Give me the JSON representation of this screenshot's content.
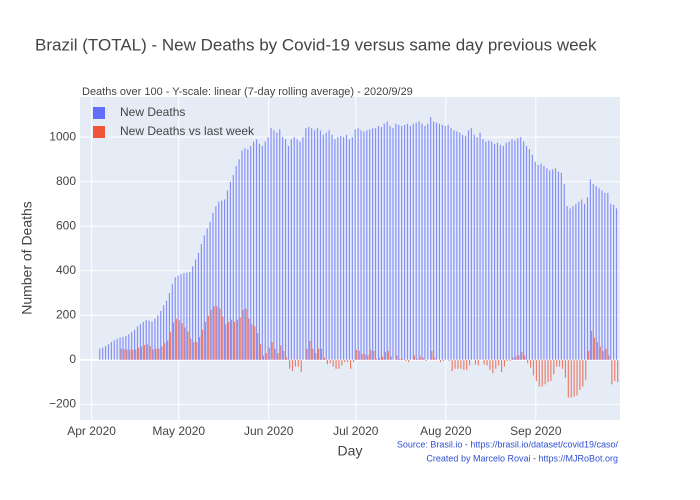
{
  "chart_data": {
    "type": "bar",
    "title": "Brazil (TOTAL) - New Deaths by Covid-19 versus same day previous week",
    "subtitle": "Deaths over 100 - Y-scale: linear (7-day rolling average) - 2020/9/29",
    "x_label": "Day",
    "y_label": "Number of Deaths",
    "annotations": [
      "Source: Brasil.io - https://brasil.io/dataset/covid19/caso/",
      "Created by Marcelo Rovai - https://MJRoBot.org"
    ],
    "legend": "top-left",
    "grid": true,
    "xlim": [
      "2020-03-28",
      "2020-09-30"
    ],
    "xticks": [
      {
        "value": "2020-04-01",
        "label": "Apr 2020"
      },
      {
        "value": "2020-05-01",
        "label": "May 2020"
      },
      {
        "value": "2020-06-01",
        "label": "Jun 2020"
      },
      {
        "value": "2020-07-01",
        "label": "Jul 2020"
      },
      {
        "value": "2020-08-01",
        "label": "Aug 2020"
      },
      {
        "value": "2020-09-01",
        "label": "Sep 2020"
      }
    ],
    "ylim": [
      -270,
      1180
    ],
    "yticks": [
      {
        "value": -200,
        "label": "−200"
      },
      0,
      200,
      400,
      600,
      800,
      1000
    ],
    "x": [
      "2020-04-04",
      "2020-04-05",
      "2020-04-06",
      "2020-04-07",
      "2020-04-08",
      "2020-04-09",
      "2020-04-10",
      "2020-04-11",
      "2020-04-12",
      "2020-04-13",
      "2020-04-14",
      "2020-04-15",
      "2020-04-16",
      "2020-04-17",
      "2020-04-18",
      "2020-04-19",
      "2020-04-20",
      "2020-04-21",
      "2020-04-22",
      "2020-04-23",
      "2020-04-24",
      "2020-04-25",
      "2020-04-26",
      "2020-04-27",
      "2020-04-28",
      "2020-04-29",
      "2020-04-30",
      "2020-05-01",
      "2020-05-02",
      "2020-05-03",
      "2020-05-04",
      "2020-05-05",
      "2020-05-06",
      "2020-05-07",
      "2020-05-08",
      "2020-05-09",
      "2020-05-10",
      "2020-05-11",
      "2020-05-12",
      "2020-05-13",
      "2020-05-14",
      "2020-05-15",
      "2020-05-16",
      "2020-05-17",
      "2020-05-18",
      "2020-05-19",
      "2020-05-20",
      "2020-05-21",
      "2020-05-22",
      "2020-05-23",
      "2020-05-24",
      "2020-05-25",
      "2020-05-26",
      "2020-05-27",
      "2020-05-28",
      "2020-05-29",
      "2020-05-30",
      "2020-05-31",
      "2020-06-01",
      "2020-06-02",
      "2020-06-03",
      "2020-06-04",
      "2020-06-05",
      "2020-06-06",
      "2020-06-07",
      "2020-06-08",
      "2020-06-09",
      "2020-06-10",
      "2020-06-11",
      "2020-06-12",
      "2020-06-13",
      "2020-06-14",
      "2020-06-15",
      "2020-06-16",
      "2020-06-17",
      "2020-06-18",
      "2020-06-19",
      "2020-06-20",
      "2020-06-21",
      "2020-06-22",
      "2020-06-23",
      "2020-06-24",
      "2020-06-25",
      "2020-06-26",
      "2020-06-27",
      "2020-06-28",
      "2020-06-29",
      "2020-06-30",
      "2020-07-01",
      "2020-07-02",
      "2020-07-03",
      "2020-07-04",
      "2020-07-05",
      "2020-07-06",
      "2020-07-07",
      "2020-07-08",
      "2020-07-09",
      "2020-07-10",
      "2020-07-11",
      "2020-07-12",
      "2020-07-13",
      "2020-07-14",
      "2020-07-15",
      "2020-07-16",
      "2020-07-17",
      "2020-07-18",
      "2020-07-19",
      "2020-07-20",
      "2020-07-21",
      "2020-07-22",
      "2020-07-23",
      "2020-07-24",
      "2020-07-25",
      "2020-07-26",
      "2020-07-27",
      "2020-07-28",
      "2020-07-29",
      "2020-07-30",
      "2020-07-31",
      "2020-08-01",
      "2020-08-02",
      "2020-08-03",
      "2020-08-04",
      "2020-08-05",
      "2020-08-06",
      "2020-08-07",
      "2020-08-08",
      "2020-08-09",
      "2020-08-10",
      "2020-08-11",
      "2020-08-12",
      "2020-08-13",
      "2020-08-14",
      "2020-08-15",
      "2020-08-16",
      "2020-08-17",
      "2020-08-18",
      "2020-08-19",
      "2020-08-20",
      "2020-08-21",
      "2020-08-22",
      "2020-08-23",
      "2020-08-24",
      "2020-08-25",
      "2020-08-26",
      "2020-08-27",
      "2020-08-28",
      "2020-08-29",
      "2020-08-30",
      "2020-08-31",
      "2020-09-01",
      "2020-09-02",
      "2020-09-03",
      "2020-09-04",
      "2020-09-05",
      "2020-09-06",
      "2020-09-07",
      "2020-09-08",
      "2020-09-09",
      "2020-09-10",
      "2020-09-11",
      "2020-09-12",
      "2020-09-13",
      "2020-09-14",
      "2020-09-15",
      "2020-09-16",
      "2020-09-17",
      "2020-09-18",
      "2020-09-19",
      "2020-09-20",
      "2020-09-21",
      "2020-09-22",
      "2020-09-23",
      "2020-09-24",
      "2020-09-25",
      "2020-09-26",
      "2020-09-27",
      "2020-09-28",
      "2020-09-29"
    ],
    "series": [
      {
        "name": "New Deaths",
        "color": "#636efa",
        "values": [
          50,
          55,
          62,
          70,
          80,
          88,
          95,
          100,
          103,
          108,
          115,
          125,
          135,
          150,
          160,
          170,
          178,
          176,
          172,
          185,
          200,
          220,
          245,
          265,
          300,
          340,
          370,
          378,
          385,
          390,
          392,
          395,
          420,
          450,
          480,
          520,
          560,
          590,
          620,
          660,
          690,
          710,
          715,
          720,
          760,
          800,
          830,
          870,
          900,
          940,
          950,
          945,
          960,
          980,
          990,
          970,
          960,
          980,
          1000,
          1040,
          1030,
          1020,
          1035,
          1000,
          990,
          960,
          990,
          1000,
          990,
          980,
          1000,
          1040,
          1045,
          1040,
          1030,
          1040,
          1030,
          1010,
          1020,
          1030,
          1010,
          990,
          1000,
          1005,
          1000,
          1010,
          990,
          1000,
          1035,
          1040,
          1030,
          1025,
          1030,
          1035,
          1040,
          1040,
          1050,
          1045,
          1060,
          1070,
          1050,
          1040,
          1060,
          1055,
          1050,
          1055,
          1060,
          1050,
          1060,
          1065,
          1070,
          1060,
          1050,
          1060,
          1090,
          1070,
          1065,
          1060,
          1055,
          1050,
          1055,
          1040,
          1030,
          1025,
          1020,
          1010,
          1005,
          1030,
          1040,
          1010,
          1000,
          1020,
          990,
          980,
          985,
          980,
          970,
          975,
          965,
          960,
          975,
          980,
          990,
          985,
          995,
          1000,
          980,
          960,
          945,
          920,
          890,
          875,
          880,
          870,
          860,
          850,
          855,
          860,
          845,
          840,
          790,
          690,
          680,
          690,
          700,
          710,
          720,
          700,
          730,
          810,
          790,
          780,
          770,
          760,
          750,
          750,
          700,
          695,
          680
        ]
      },
      {
        "name": "New Deaths vs last week",
        "color": "#ef553b",
        "values": [
          null,
          null,
          null,
          null,
          null,
          null,
          null,
          50,
          48,
          46,
          45,
          45,
          47,
          55,
          60,
          67,
          70,
          61,
          47,
          50,
          50,
          60,
          75,
          87,
          124,
          168,
          185,
          178,
          165,
          145,
          127,
          95,
          80,
          80,
          102,
          135,
          170,
          198,
          225,
          240,
          240,
          230,
          195,
          160,
          170,
          180,
          170,
          180,
          190,
          225,
          230,
          185,
          160,
          150,
          120,
          70,
          20,
          30,
          55,
          80,
          50,
          30,
          65,
          40,
          10,
          -40,
          -50,
          -30,
          -30,
          -55,
          0,
          50,
          85,
          50,
          30,
          50,
          50,
          10,
          -20,
          -15,
          -30,
          -40,
          -40,
          -25,
          -10,
          -10,
          -40,
          -10,
          45,
          40,
          25,
          25,
          20,
          45,
          40,
          5,
          10,
          15,
          35,
          40,
          15,
          0,
          20,
          5,
          5,
          -5,
          -10,
          0,
          20,
          5,
          15,
          10,
          -5,
          0,
          40,
          10,
          0,
          -10,
          -5,
          0,
          -5,
          -50,
          -40,
          -40,
          -40,
          -45,
          -45,
          -25,
          0,
          -20,
          -25,
          0,
          -20,
          -25,
          -45,
          -60,
          -40,
          -25,
          -55,
          -30,
          -5,
          -5,
          10,
          15,
          20,
          35,
          20,
          -15,
          -35,
          -70,
          -95,
          -120,
          -120,
          -110,
          -100,
          -95,
          -65,
          -30,
          -30,
          -40,
          -80,
          -170,
          -170,
          -165,
          -160,
          -135,
          -120,
          -90,
          40,
          130,
          100,
          80,
          60,
          40,
          50,
          20,
          -110,
          -95,
          -100
        ]
      }
    ]
  }
}
